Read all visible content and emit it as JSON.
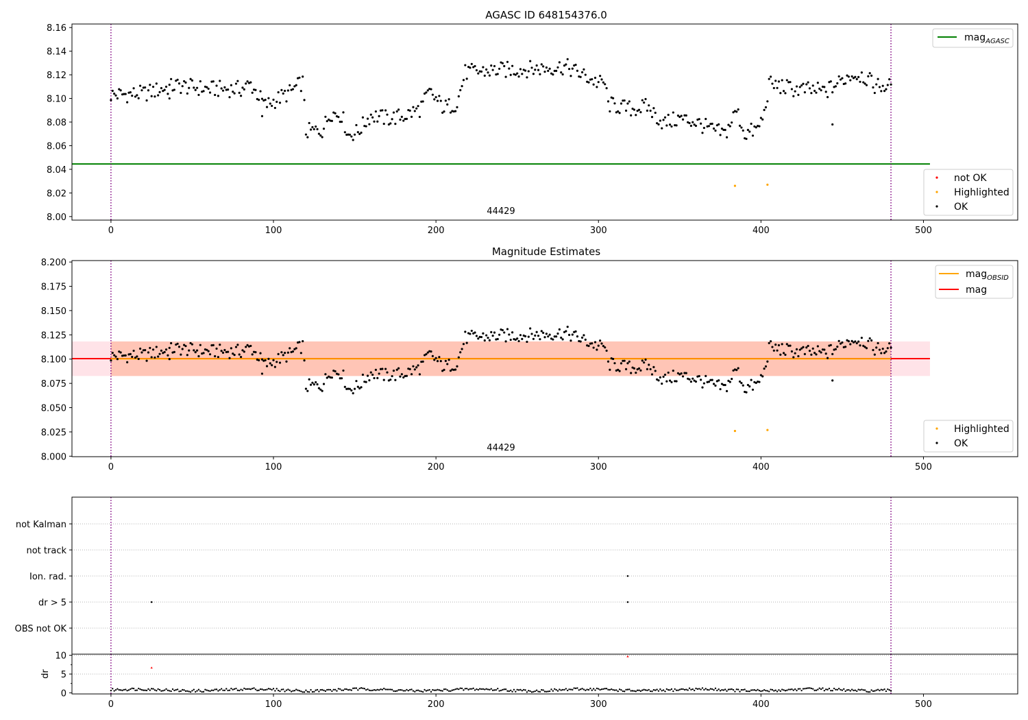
{
  "chart_data": [
    {
      "type": "scatter",
      "title": "AGASC ID 648154376.0",
      "annotation": "44429",
      "xlim": [
        -24,
        558
      ],
      "ylim": [
        7.997,
        8.163
      ],
      "xticks": [
        0,
        100,
        200,
        300,
        400,
        500
      ],
      "xtick_labels": [
        "0",
        "100",
        "200",
        "300",
        "400",
        "500"
      ],
      "yticks": [
        8.0,
        8.02,
        8.04,
        8.06,
        8.08,
        8.1,
        8.12,
        8.14,
        8.16
      ],
      "ytick_labels": [
        "8.00",
        "8.02",
        "8.04",
        "8.06",
        "8.08",
        "8.10",
        "8.12",
        "8.14",
        "8.16"
      ],
      "hlines": [
        {
          "name": "mag",
          "subscript": "AGASC",
          "y": 8.0445,
          "x_range": [
            -24,
            504
          ],
          "color": "#008000"
        }
      ],
      "vlines": [
        0,
        480
      ],
      "legends": [
        {
          "position": "upper-right",
          "entries": [
            {
              "label": "mag",
              "subscript": "AGASC",
              "kind": "line",
              "color": "#008000"
            }
          ]
        },
        {
          "position": "lower-right",
          "entries": [
            {
              "label": "not OK",
              "kind": "marker",
              "color": "#ff0000"
            },
            {
              "label": "Highlighted",
              "kind": "marker",
              "color": "#ffa500"
            },
            {
              "label": "OK",
              "kind": "marker",
              "color": "#000000"
            }
          ]
        }
      ],
      "series": [
        {
          "name": "OK",
          "color": "#000000",
          "generated_from_curve": true
        },
        {
          "name": "Highlighted",
          "color": "#ffa500",
          "points": [
            [
              384,
              8.026
            ],
            [
              404,
              8.027
            ]
          ]
        }
      ],
      "curve_anchors": [
        [
          0,
          8.103
        ],
        [
          20,
          8.104
        ],
        [
          40,
          8.111
        ],
        [
          60,
          8.108
        ],
        [
          80,
          8.108
        ],
        [
          86,
          8.112
        ],
        [
          95,
          8.094
        ],
        [
          110,
          8.105
        ],
        [
          118,
          8.114
        ],
        [
          120,
          8.072
        ],
        [
          130,
          8.073
        ],
        [
          135,
          8.088
        ],
        [
          142,
          8.086
        ],
        [
          146,
          8.069
        ],
        [
          152,
          8.072
        ],
        [
          160,
          8.086
        ],
        [
          170,
          8.083
        ],
        [
          180,
          8.085
        ],
        [
          190,
          8.091
        ],
        [
          196,
          8.105
        ],
        [
          205,
          8.092
        ],
        [
          213,
          8.096
        ],
        [
          218,
          8.122
        ],
        [
          240,
          8.124
        ],
        [
          260,
          8.125
        ],
        [
          280,
          8.127
        ],
        [
          290,
          8.12
        ],
        [
          300,
          8.113
        ],
        [
          304,
          8.113
        ],
        [
          306,
          8.095
        ],
        [
          320,
          8.091
        ],
        [
          330,
          8.093
        ],
        [
          340,
          8.079
        ],
        [
          350,
          8.083
        ],
        [
          360,
          8.08
        ],
        [
          370,
          8.073
        ],
        [
          378,
          8.07
        ],
        [
          385,
          8.09
        ],
        [
          390,
          8.07
        ],
        [
          398,
          8.074
        ],
        [
          402,
          8.087
        ],
        [
          405,
          8.112
        ],
        [
          420,
          8.108
        ],
        [
          440,
          8.106
        ],
        [
          455,
          8.12
        ],
        [
          462,
          8.12
        ],
        [
          470,
          8.111
        ],
        [
          480,
          8.11
        ]
      ],
      "outliers": [
        [
          444,
          8.078
        ],
        [
          36,
          8.1
        ],
        [
          93,
          8.085
        ]
      ]
    },
    {
      "type": "scatter",
      "title": "Magnitude Estimates",
      "annotation": "44429",
      "xlim": [
        -24,
        558
      ],
      "ylim": [
        7.9995,
        8.2015
      ],
      "xticks": [
        0,
        100,
        200,
        300,
        400,
        500
      ],
      "xtick_labels": [
        "0",
        "100",
        "200",
        "300",
        "400",
        "500"
      ],
      "yticks": [
        8.0,
        8.025,
        8.05,
        8.075,
        8.1,
        8.125,
        8.15,
        8.175,
        8.2
      ],
      "ytick_labels": [
        "8.000",
        "8.025",
        "8.050",
        "8.075",
        "8.100",
        "8.125",
        "8.150",
        "8.175",
        "8.200"
      ],
      "hlines": [
        {
          "name": "mag",
          "subscript": "OBSID",
          "y": 8.1003,
          "x_range": [
            0,
            480
          ],
          "color": "#ffa500"
        },
        {
          "name": "mag",
          "y": 8.1005,
          "x_range": [
            -24,
            504
          ],
          "color": "#ff0000"
        }
      ],
      "bands": [
        {
          "y_range": [
            8.0826,
            8.1182
          ],
          "x_range": [
            -24,
            504
          ],
          "color": "#ffc0cb"
        },
        {
          "y_range": [
            8.0826,
            8.1182
          ],
          "x_range": [
            0,
            480
          ],
          "color": "#ffa07a"
        }
      ],
      "vlines": [
        0,
        480
      ],
      "legends": [
        {
          "position": "upper-right",
          "entries": [
            {
              "label": "mag",
              "subscript": "OBSID",
              "kind": "line",
              "color": "#ffa500"
            },
            {
              "label": "mag",
              "kind": "line",
              "color": "#ff0000"
            }
          ]
        },
        {
          "position": "lower-right",
          "entries": [
            {
              "label": "Highlighted",
              "kind": "marker",
              "color": "#ffa500"
            },
            {
              "label": "OK",
              "kind": "marker",
              "color": "#000000"
            }
          ]
        }
      ],
      "series": [
        {
          "name": "OK",
          "color": "#000000",
          "generated_from_curve": true
        },
        {
          "name": "Highlighted",
          "color": "#ffa500",
          "points": [
            [
              384,
              8.026
            ],
            [
              404,
              8.027
            ]
          ]
        }
      ]
    },
    {
      "type": "scatter",
      "xlim": [
        -24,
        558
      ],
      "categories": [
        "OBS not OK",
        "dr > 5",
        "Ion. rad.",
        "not track",
        "not Kalman"
      ],
      "series": [
        {
          "name": "dr > 5",
          "color": "#000000",
          "points": [
            [
              25,
              1
            ],
            [
              318,
              1
            ]
          ]
        },
        {
          "name": "Ion. rad.",
          "color": "#000000",
          "points": [
            [
              318,
              2
            ]
          ]
        }
      ],
      "vlines": [
        0,
        480
      ]
    },
    {
      "type": "scatter",
      "ylabel": "dr",
      "xlim": [
        -24,
        558
      ],
      "ylim": [
        -0.3,
        10.3
      ],
      "xticks": [
        0,
        100,
        200,
        300,
        400,
        500
      ],
      "xtick_labels": [
        "0",
        "100",
        "200",
        "300",
        "400",
        "500"
      ],
      "yticks": [
        0,
        5,
        10
      ],
      "ytick_labels": [
        "0",
        "5",
        "10"
      ],
      "series": [
        {
          "name": "OK",
          "color": "#000000",
          "generated": true,
          "range": [
            0.1,
            1.4
          ]
        },
        {
          "name": "not OK",
          "color": "#ff0000",
          "points": [
            [
              25,
              6.7
            ],
            [
              318,
              9.7
            ]
          ]
        }
      ],
      "vlines": [
        0,
        480
      ]
    }
  ]
}
